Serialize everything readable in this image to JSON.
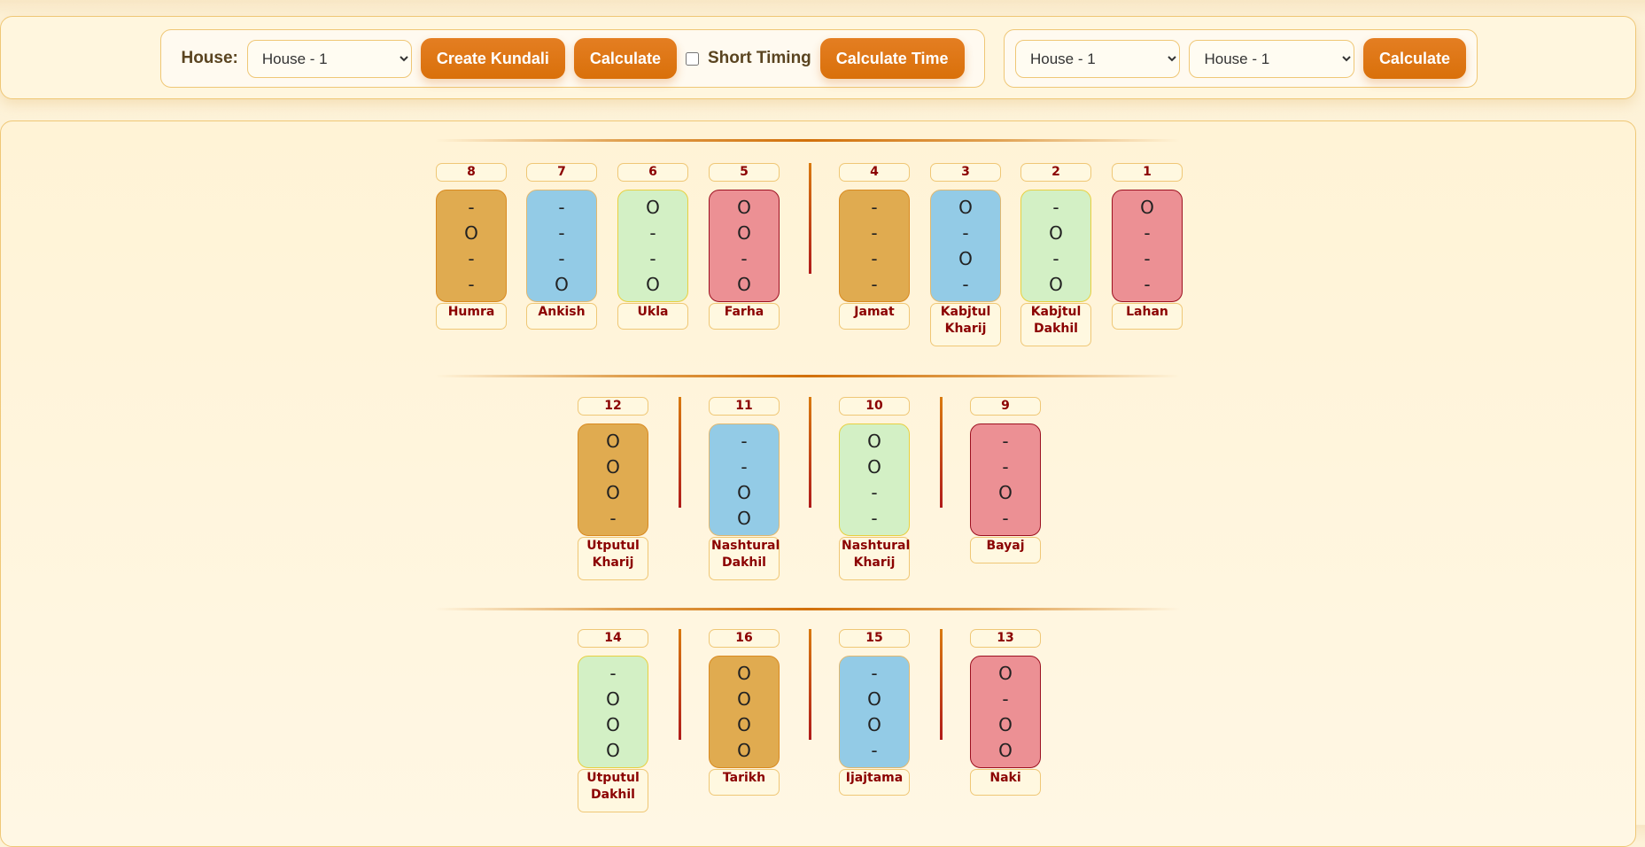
{
  "toolbar": {
    "house_label": "House:",
    "house_select": "House - 1",
    "create_kundali": "Create Kundali",
    "calculate": "Calculate",
    "short_timing": "Short Timing",
    "short_timing_checked": false,
    "calculate_time": "Calculate Time",
    "select_a": "House - 1",
    "select_b": "House - 1",
    "calculate2": "Calculate"
  },
  "colors": {
    "orange": "#e0ab50",
    "blue": "#93cbe6",
    "green": "#d3f0c5",
    "red": "#ec9094"
  },
  "rows": [
    [
      {
        "num": "8",
        "name": "Humra",
        "color": "orange",
        "marks": [
          "-",
          "O",
          "-",
          "-"
        ]
      },
      {
        "num": "7",
        "name": "Ankish",
        "color": "blue",
        "marks": [
          "-",
          "-",
          "-",
          "O"
        ]
      },
      {
        "num": "6",
        "name": "Ukla",
        "color": "green",
        "marks": [
          "O",
          "-",
          "-",
          "O"
        ]
      },
      {
        "num": "5",
        "name": "Farha",
        "color": "red",
        "marks": [
          "O",
          "O",
          "-",
          "O"
        ]
      },
      {
        "num": "4",
        "name": "Jamat",
        "color": "orange",
        "marks": [
          "-",
          "-",
          "-",
          "-"
        ]
      },
      {
        "num": "3",
        "name": "Kabjtul Kharij",
        "color": "blue",
        "marks": [
          "O",
          "-",
          "O",
          "-"
        ]
      },
      {
        "num": "2",
        "name": "Kabjtul Dakhil",
        "color": "green",
        "marks": [
          "-",
          "O",
          "-",
          "O"
        ]
      },
      {
        "num": "1",
        "name": "Lahan",
        "color": "red",
        "marks": [
          "O",
          "-",
          "-",
          "-"
        ]
      }
    ],
    [
      {
        "num": "12",
        "name": "Utputul Kharij",
        "color": "orange",
        "marks": [
          "O",
          "O",
          "O",
          "-"
        ]
      },
      {
        "num": "11",
        "name": "Nashtural Dakhil",
        "color": "blue",
        "marks": [
          "-",
          "-",
          "O",
          "O"
        ]
      },
      {
        "num": "10",
        "name": "Nashtural Kharij",
        "color": "green",
        "marks": [
          "O",
          "O",
          "-",
          "-"
        ]
      },
      {
        "num": "9",
        "name": "Bayaj",
        "color": "red",
        "marks": [
          "-",
          "-",
          "O",
          "-"
        ]
      }
    ],
    [
      {
        "num": "14",
        "name": "Utputul Dakhil",
        "color": "green",
        "marks": [
          "-",
          "O",
          "O",
          "O"
        ]
      },
      {
        "num": "16",
        "name": "Tarikh",
        "color": "orange",
        "marks": [
          "O",
          "O",
          "O",
          "O"
        ]
      },
      {
        "num": "15",
        "name": "Ijajtama",
        "color": "blue",
        "marks": [
          "-",
          "O",
          "O",
          "-"
        ]
      },
      {
        "num": "13",
        "name": "Naki",
        "color": "red",
        "marks": [
          "O",
          "-",
          "O",
          "O"
        ]
      }
    ]
  ]
}
